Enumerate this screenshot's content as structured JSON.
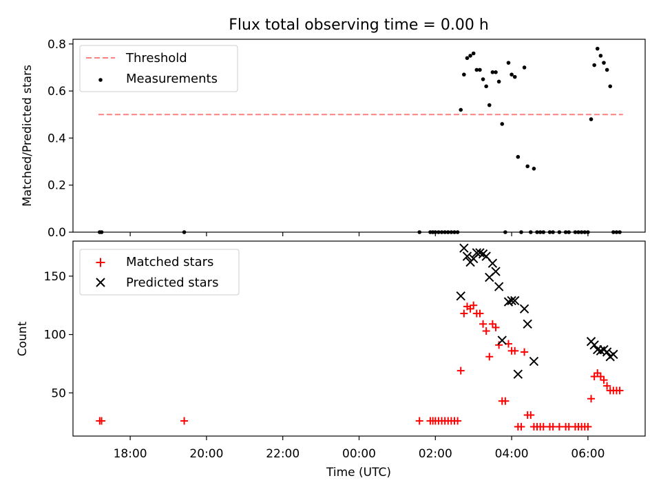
{
  "chart_data": [
    {
      "type": "scatter",
      "title": "Flux total observing time = 0.00 h",
      "ylabel": "Matched/Predicted stars",
      "xlim": [
        "16:30",
        "07:30"
      ],
      "ylim": [
        0,
        0.82
      ],
      "yticks": [
        0.0,
        0.2,
        0.4,
        0.6,
        0.8
      ],
      "ytick_labels": [
        "0.0",
        "0.2",
        "0.4",
        "0.6",
        "0.8"
      ],
      "legend_position": "top-left",
      "threshold": {
        "name": "Threshold",
        "value": 0.5,
        "x_range": [
          "17:10",
          "06:55"
        ],
        "color": "#ff7f7f",
        "style": "dashed"
      },
      "series": [
        {
          "name": "Measurements",
          "color": "#000000",
          "marker": "dot",
          "points": [
            [
              "17:12",
              0.0
            ],
            [
              "17:15",
              0.0
            ],
            [
              "19:25",
              0.0
            ],
            [
              "01:35",
              0.0
            ],
            [
              "01:52",
              0.0
            ],
            [
              "01:56",
              0.0
            ],
            [
              "02:00",
              0.0
            ],
            [
              "02:05",
              0.0
            ],
            [
              "02:10",
              0.0
            ],
            [
              "02:15",
              0.0
            ],
            [
              "02:20",
              0.0
            ],
            [
              "02:25",
              0.0
            ],
            [
              "02:30",
              0.0
            ],
            [
              "02:35",
              0.0
            ],
            [
              "02:40",
              0.52
            ],
            [
              "02:45",
              0.67
            ],
            [
              "02:50",
              0.74
            ],
            [
              "02:55",
              0.75
            ],
            [
              "03:00",
              0.76
            ],
            [
              "03:05",
              0.69
            ],
            [
              "03:10",
              0.69
            ],
            [
              "03:15",
              0.65
            ],
            [
              "03:20",
              0.62
            ],
            [
              "03:25",
              0.54
            ],
            [
              "03:30",
              0.68
            ],
            [
              "03:35",
              0.68
            ],
            [
              "03:40",
              0.64
            ],
            [
              "03:45",
              0.46
            ],
            [
              "03:50",
              0.0
            ],
            [
              "03:55",
              0.72
            ],
            [
              "04:00",
              0.67
            ],
            [
              "04:05",
              0.66
            ],
            [
              "04:10",
              0.32
            ],
            [
              "04:15",
              0.0
            ],
            [
              "04:20",
              0.7
            ],
            [
              "04:25",
              0.28
            ],
            [
              "04:30",
              0.0
            ],
            [
              "04:35",
              0.27
            ],
            [
              "04:40",
              0.0
            ],
            [
              "04:45",
              0.0
            ],
            [
              "04:50",
              0.0
            ],
            [
              "05:00",
              0.0
            ],
            [
              "05:05",
              0.0
            ],
            [
              "05:15",
              0.0
            ],
            [
              "05:25",
              0.0
            ],
            [
              "05:30",
              0.0
            ],
            [
              "05:40",
              0.0
            ],
            [
              "05:45",
              0.0
            ],
            [
              "05:50",
              0.0
            ],
            [
              "05:55",
              0.0
            ],
            [
              "06:00",
              0.0
            ],
            [
              "06:05",
              0.48
            ],
            [
              "06:10",
              0.71
            ],
            [
              "06:15",
              0.78
            ],
            [
              "06:20",
              0.75
            ],
            [
              "06:25",
              0.72
            ],
            [
              "06:30",
              0.69
            ],
            [
              "06:35",
              0.62
            ],
            [
              "06:40",
              0.0
            ],
            [
              "06:45",
              0.0
            ],
            [
              "06:50",
              0.0
            ]
          ]
        }
      ]
    },
    {
      "type": "scatter",
      "xlabel": "Time (UTC)",
      "ylabel": "Count",
      "xlim": [
        "16:30",
        "07:30"
      ],
      "ylim": [
        13,
        180
      ],
      "yticks": [
        50,
        100,
        150
      ],
      "ytick_labels": [
        "50",
        "100",
        "150"
      ],
      "xtick_values": [
        "18:00",
        "20:00",
        "22:00",
        "00:00",
        "02:00",
        "04:00",
        "06:00"
      ],
      "xtick_labels": [
        "18:00",
        "20:00",
        "22:00",
        "00:00",
        "02:00",
        "04:00",
        "06:00"
      ],
      "legend_position": "top-left",
      "series": [
        {
          "name": "Matched stars",
          "color": "#ff0000",
          "marker": "plus",
          "points": [
            [
              "17:12",
              26
            ],
            [
              "17:15",
              26
            ],
            [
              "19:25",
              26
            ],
            [
              "01:35",
              26
            ],
            [
              "01:52",
              26
            ],
            [
              "01:56",
              26
            ],
            [
              "02:00",
              26
            ],
            [
              "02:05",
              26
            ],
            [
              "02:10",
              26
            ],
            [
              "02:15",
              26
            ],
            [
              "02:20",
              26
            ],
            [
              "02:25",
              26
            ],
            [
              "02:30",
              26
            ],
            [
              "02:35",
              26
            ],
            [
              "02:40",
              69
            ],
            [
              "02:45",
              118
            ],
            [
              "02:50",
              124
            ],
            [
              "02:55",
              122
            ],
            [
              "03:00",
              125
            ],
            [
              "03:05",
              118
            ],
            [
              "03:10",
              118
            ],
            [
              "03:15",
              109
            ],
            [
              "03:20",
              103
            ],
            [
              "03:25",
              81
            ],
            [
              "03:30",
              109
            ],
            [
              "03:35",
              106
            ],
            [
              "03:40",
              91
            ],
            [
              "03:45",
              43
            ],
            [
              "03:50",
              43
            ],
            [
              "03:55",
              92
            ],
            [
              "04:00",
              86
            ],
            [
              "04:05",
              86
            ],
            [
              "04:10",
              21
            ],
            [
              "04:15",
              21
            ],
            [
              "04:20",
              85
            ],
            [
              "04:25",
              31
            ],
            [
              "04:30",
              31
            ],
            [
              "04:35",
              21
            ],
            [
              "04:40",
              21
            ],
            [
              "04:45",
              21
            ],
            [
              "04:50",
              21
            ],
            [
              "05:00",
              21
            ],
            [
              "05:05",
              21
            ],
            [
              "05:15",
              21
            ],
            [
              "05:25",
              21
            ],
            [
              "05:30",
              21
            ],
            [
              "05:40",
              21
            ],
            [
              "05:45",
              21
            ],
            [
              "05:50",
              21
            ],
            [
              "05:55",
              21
            ],
            [
              "06:00",
              21
            ],
            [
              "06:05",
              45
            ],
            [
              "06:10",
              64
            ],
            [
              "06:15",
              67
            ],
            [
              "06:20",
              64
            ],
            [
              "06:25",
              61
            ],
            [
              "06:30",
              56
            ],
            [
              "06:35",
              52
            ],
            [
              "06:40",
              52
            ],
            [
              "06:45",
              52
            ],
            [
              "06:50",
              52
            ]
          ]
        },
        {
          "name": "Predicted stars",
          "color": "#000000",
          "marker": "x",
          "points": [
            [
              "02:40",
              133
            ],
            [
              "02:45",
              174
            ],
            [
              "02:50",
              167
            ],
            [
              "02:55",
              162
            ],
            [
              "03:00",
              165
            ],
            [
              "03:05",
              170
            ],
            [
              "03:10",
              170
            ],
            [
              "03:15",
              169
            ],
            [
              "03:20",
              167
            ],
            [
              "03:25",
              149
            ],
            [
              "03:30",
              161
            ],
            [
              "03:35",
              154
            ],
            [
              "03:40",
              141
            ],
            [
              "03:45",
              95
            ],
            [
              "03:55",
              128
            ],
            [
              "04:00",
              129
            ],
            [
              "04:05",
              129
            ],
            [
              "04:10",
              66
            ],
            [
              "04:20",
              122
            ],
            [
              "04:25",
              109
            ],
            [
              "04:35",
              77
            ],
            [
              "06:05",
              94
            ],
            [
              "06:10",
              91
            ],
            [
              "06:15",
              87
            ],
            [
              "06:20",
              86
            ],
            [
              "06:25",
              87
            ],
            [
              "06:30",
              85
            ],
            [
              "06:35",
              81
            ],
            [
              "06:40",
              83
            ]
          ]
        }
      ]
    }
  ]
}
